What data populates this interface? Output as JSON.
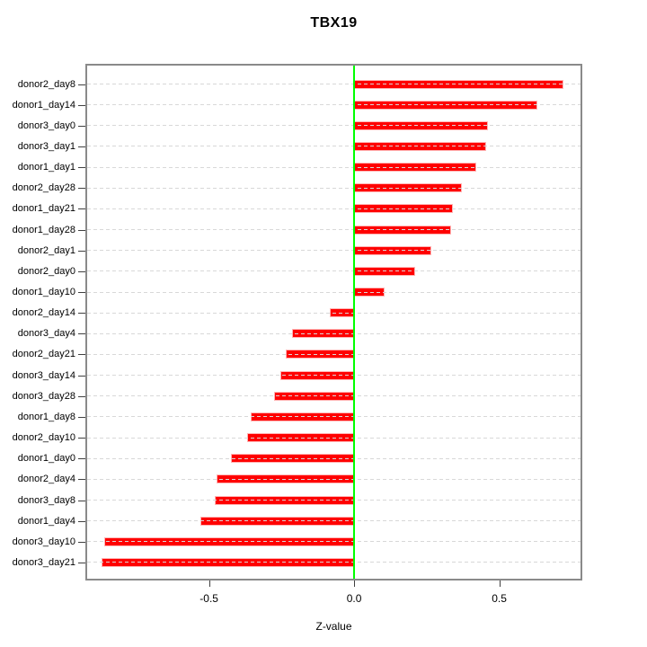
{
  "chart_data": {
    "type": "bar",
    "orientation": "horizontal",
    "title": "TBX19",
    "xlabel": "Z-value",
    "categories": [
      "donor2_day8",
      "donor1_day14",
      "donor3_day0",
      "donor3_day1",
      "donor1_day1",
      "donor2_day28",
      "donor1_day21",
      "donor1_day28",
      "donor2_day1",
      "donor2_day0",
      "donor1_day10",
      "donor2_day14",
      "donor3_day4",
      "donor2_day21",
      "donor3_day14",
      "donor3_day28",
      "donor1_day8",
      "donor2_day10",
      "donor1_day0",
      "donor2_day4",
      "donor3_day8",
      "donor1_day4",
      "donor3_day10",
      "donor3_day21"
    ],
    "values": [
      0.72,
      0.63,
      0.46,
      0.455,
      0.42,
      0.37,
      0.34,
      0.335,
      0.265,
      0.21,
      0.105,
      -0.085,
      -0.215,
      -0.235,
      -0.255,
      -0.275,
      -0.355,
      -0.37,
      -0.425,
      -0.475,
      -0.48,
      -0.53,
      -0.86,
      -0.87
    ],
    "xlim": [
      -0.92,
      0.78
    ],
    "xticks": [
      {
        "value": -0.5,
        "label": "-0.5"
      },
      {
        "value": 0.0,
        "label": "0.0"
      },
      {
        "value": 0.5,
        "label": "0.5"
      }
    ],
    "grid": "horizontal-dashed",
    "legend_position": "none",
    "colors": {
      "bar": "#FF0000",
      "bar_border": "#FFB3B3",
      "zero_line": "#00FF00",
      "grid_line": "#D8D8D8",
      "box_border": "#8A8A8A",
      "text": "#000000"
    }
  }
}
